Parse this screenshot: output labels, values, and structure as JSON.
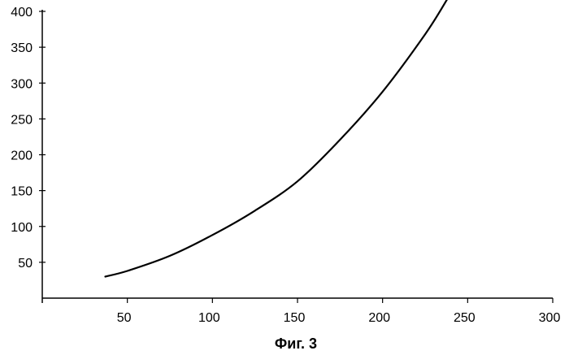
{
  "chart_data": {
    "type": "line",
    "title": "",
    "caption": "Фиг. 3",
    "xlabel": "",
    "ylabel": "",
    "xlim": [
      0,
      300
    ],
    "ylim": [
      0,
      400
    ],
    "x_ticks": [
      50,
      100,
      150,
      200,
      250,
      300
    ],
    "y_ticks": [
      50,
      100,
      150,
      200,
      250,
      300,
      350,
      400
    ],
    "grid": false,
    "series": [
      {
        "x": [
          37,
          50,
          75,
          100,
          125,
          150,
          175,
          200,
          225,
          238
        ],
        "y": [
          30,
          38,
          59,
          88,
          122,
          163,
          221,
          288,
          368,
          417
        ]
      }
    ]
  }
}
